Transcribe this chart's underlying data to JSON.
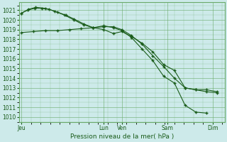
{
  "title": "Pression niveau de la mer( hPa )",
  "background_color": "#cdeaea",
  "grid_color": "#6aaa6a",
  "line_color": "#1a5c1a",
  "marker": "+",
  "markersize": 3.5,
  "markeredgewidth": 1.0,
  "linewidth": 0.8,
  "ylim": [
    1009.5,
    1021.8
  ],
  "yticks": [
    1010,
    1011,
    1012,
    1013,
    1014,
    1015,
    1016,
    1017,
    1018,
    1019,
    1020,
    1021
  ],
  "tick_fontsize": 5.5,
  "xlabel_fontsize": 6.5,
  "x_day_positions": [
    0.0,
    3.45,
    4.2,
    6.1,
    8.0
  ],
  "x_day_labels": [
    "Jeu",
    "Lun",
    "Ven",
    "Sam",
    "Dim"
  ],
  "xlim": [
    -0.1,
    8.5
  ],
  "line_A_x": [
    0.0,
    0.25,
    0.55,
    0.85,
    1.15,
    1.5,
    1.85,
    2.2,
    2.6,
    3.0,
    3.45,
    3.85,
    4.2,
    4.6,
    5.05,
    5.5,
    5.95,
    6.4,
    6.85,
    7.3,
    7.75,
    8.2
  ],
  "line_A_y": [
    1020.7,
    1021.0,
    1021.2,
    1021.2,
    1021.1,
    1020.8,
    1020.5,
    1020.1,
    1019.6,
    1019.2,
    1019.0,
    1018.6,
    1018.8,
    1018.3,
    1017.6,
    1016.7,
    1015.4,
    1014.8,
    1013.0,
    1012.8,
    1012.6,
    1012.5
  ],
  "line_B_x": [
    0.0,
    0.3,
    0.6,
    1.0,
    1.4,
    1.8,
    2.2,
    2.6,
    3.0,
    3.45,
    3.85,
    4.2,
    4.6,
    5.05,
    5.5,
    5.95,
    6.4,
    6.85,
    7.3,
    7.75
  ],
  "line_B_y": [
    1020.7,
    1021.1,
    1021.3,
    1021.2,
    1020.9,
    1020.5,
    1020.0,
    1019.5,
    1019.2,
    1019.4,
    1019.2,
    1018.9,
    1018.2,
    1017.0,
    1015.8,
    1014.2,
    1013.5,
    1011.2,
    1010.5,
    1010.4
  ],
  "line_C_x": [
    0.0,
    0.5,
    1.0,
    1.5,
    2.0,
    2.5,
    3.0,
    3.45,
    3.85,
    4.2,
    4.6,
    5.05,
    5.5,
    5.95,
    6.4,
    6.85,
    7.3,
    7.75,
    8.2
  ],
  "line_C_y": [
    1018.7,
    1018.8,
    1018.9,
    1018.9,
    1019.0,
    1019.1,
    1019.2,
    1019.3,
    1019.3,
    1019.0,
    1018.4,
    1017.5,
    1016.3,
    1015.2,
    1014.0,
    1013.0,
    1012.8,
    1012.8,
    1012.6
  ]
}
